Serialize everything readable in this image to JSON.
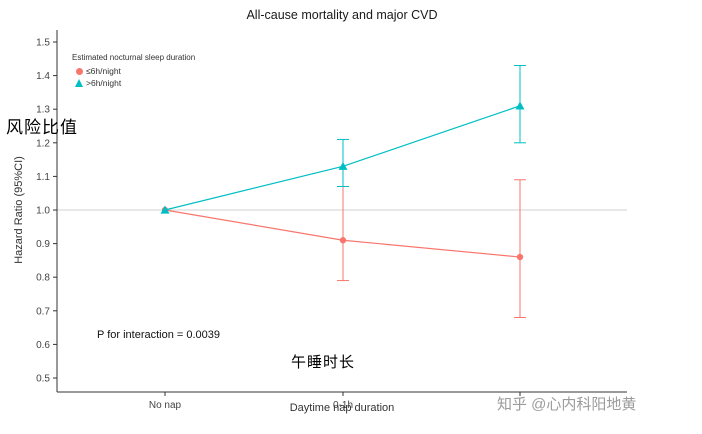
{
  "overlays": {
    "risk_ratio_label_cn": "风险比值",
    "nap_duration_label_cn": "午睡时长",
    "watermark": "知乎 @心内科阳地黄"
  },
  "chart_data": {
    "type": "line",
    "title": "All-cause mortality and major CVD",
    "xlabel": "Daytime nap duration",
    "ylabel": "Hazard Ratio (95%CI)",
    "ylim": [
      0.5,
      1.5
    ],
    "yticks": [
      0.5,
      0.6,
      0.7,
      0.8,
      0.9,
      1.0,
      1.1,
      1.2,
      1.3,
      1.4,
      1.5
    ],
    "categories": [
      "No nap",
      "0-1h",
      ""
    ],
    "reference_line": 1.0,
    "grid": false,
    "legend": {
      "title": "Estimated nocturnal sleep duration",
      "position": "top-left"
    },
    "series": [
      {
        "name": "≤6h/night",
        "marker": "circle",
        "color": "#F8766D",
        "values": [
          1.0,
          0.91,
          0.86
        ],
        "ci_low": [
          null,
          0.79,
          0.68
        ],
        "ci_high": [
          null,
          1.07,
          1.09
        ]
      },
      {
        "name": ">6h/night",
        "marker": "triangle",
        "color": "#00BFC4",
        "values": [
          1.0,
          1.13,
          1.31
        ],
        "ci_low": [
          null,
          1.07,
          1.2
        ],
        "ci_high": [
          null,
          1.21,
          1.43
        ]
      }
    ],
    "annotations": [
      {
        "text": "P for interaction = 0.0039"
      }
    ]
  }
}
